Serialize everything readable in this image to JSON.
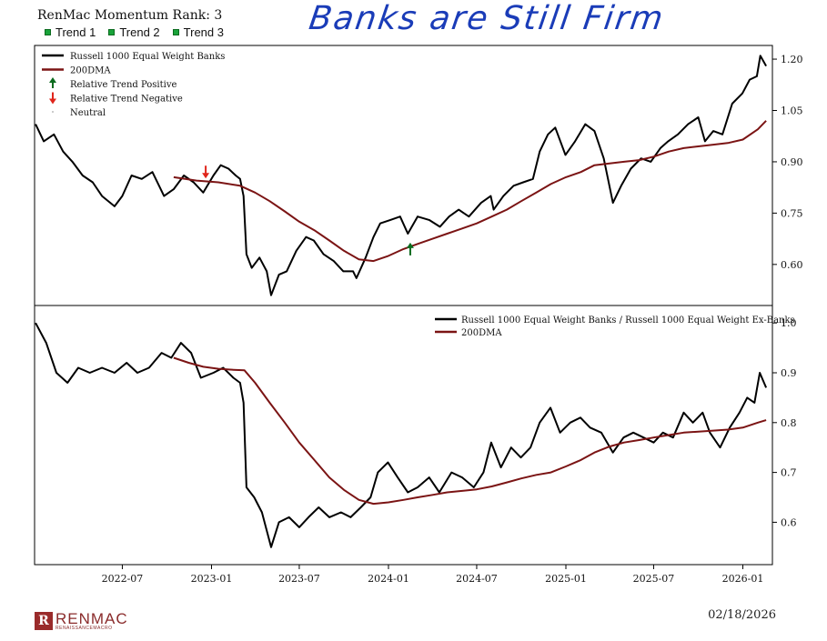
{
  "header": {
    "title": "RenMac Momentum Rank: 3",
    "trends": [
      "Trend 1",
      "Trend 2",
      "Trend 3"
    ],
    "annotation": "Banks are Still Firm"
  },
  "footer": {
    "date": "02/18/2026",
    "logo_name": "RENMAC",
    "logo_sub": "RENAISSANCEMACRO",
    "logo_mark": "R"
  },
  "colors": {
    "price": "#000000",
    "dma": "#7b1414",
    "trend_up": "#0b6b1e",
    "trend_down": "#e0251b",
    "trend_box": "#19a33a"
  },
  "chart_data": [
    {
      "type": "line",
      "id": "top",
      "xlim": [
        "2022-01-01",
        "2026-03-03"
      ],
      "ylim": [
        0.48,
        1.24
      ],
      "yticks": [
        0.6,
        0.75,
        0.9,
        1.05,
        1.2
      ],
      "ytick_labels": [
        "0.60",
        "0.75",
        "0.90",
        "1.05",
        "1.20"
      ],
      "legend": {
        "position": "top-left",
        "entries": [
          "Russell 1000 Equal Weight Banks",
          "200DMA",
          "Relative Trend Positive",
          "Relative Trend Negative",
          "Neutral"
        ]
      },
      "series": [
        {
          "name": "Russell 1000 Equal Weight Banks",
          "x": [
            "2022-01-03",
            "2022-01-20",
            "2022-02-10",
            "2022-03-01",
            "2022-03-20",
            "2022-04-10",
            "2022-05-01",
            "2022-05-20",
            "2022-06-15",
            "2022-07-01",
            "2022-07-20",
            "2022-08-10",
            "2022-09-01",
            "2022-09-25",
            "2022-10-15",
            "2022-11-05",
            "2022-11-25",
            "2022-12-15",
            "2023-01-05",
            "2023-01-20",
            "2023-02-05",
            "2023-02-20",
            "2023-03-01",
            "2023-03-08",
            "2023-03-14",
            "2023-03-25",
            "2023-04-10",
            "2023-04-25",
            "2023-05-04",
            "2023-05-20",
            "2023-06-05",
            "2023-06-25",
            "2023-07-15",
            "2023-07-31",
            "2023-08-20",
            "2023-09-10",
            "2023-09-30",
            "2023-10-20",
            "2023-10-27",
            "2023-11-15",
            "2023-12-01",
            "2023-12-15",
            "2024-01-05",
            "2024-01-25",
            "2024-02-10",
            "2024-03-01",
            "2024-03-25",
            "2024-04-16",
            "2024-05-05",
            "2024-05-25",
            "2024-06-15",
            "2024-07-10",
            "2024-07-30",
            "2024-08-05",
            "2024-08-25",
            "2024-09-15",
            "2024-10-05",
            "2024-10-25",
            "2024-11-08",
            "2024-11-25",
            "2024-12-10",
            "2024-12-31",
            "2025-01-20",
            "2025-02-10",
            "2025-03-01",
            "2025-03-20",
            "2025-04-08",
            "2025-04-25",
            "2025-05-15",
            "2025-06-05",
            "2025-06-25",
            "2025-07-15",
            "2025-07-31",
            "2025-08-20",
            "2025-09-10",
            "2025-10-01",
            "2025-10-15",
            "2025-11-01",
            "2025-11-20",
            "2025-12-10",
            "2025-12-31",
            "2026-01-15",
            "2026-01-30",
            "2026-02-06",
            "2026-02-18"
          ],
          "y": [
            1.01,
            0.96,
            0.98,
            0.93,
            0.9,
            0.86,
            0.84,
            0.8,
            0.77,
            0.8,
            0.86,
            0.85,
            0.87,
            0.8,
            0.82,
            0.86,
            0.84,
            0.81,
            0.86,
            0.89,
            0.88,
            0.86,
            0.85,
            0.8,
            0.63,
            0.59,
            0.62,
            0.58,
            0.51,
            0.57,
            0.58,
            0.64,
            0.68,
            0.67,
            0.63,
            0.61,
            0.58,
            0.58,
            0.56,
            0.62,
            0.68,
            0.72,
            0.73,
            0.74,
            0.69,
            0.74,
            0.73,
            0.71,
            0.74,
            0.76,
            0.74,
            0.78,
            0.8,
            0.76,
            0.8,
            0.83,
            0.84,
            0.85,
            0.93,
            0.98,
            1.0,
            0.92,
            0.96,
            1.01,
            0.99,
            0.91,
            0.78,
            0.83,
            0.88,
            0.91,
            0.9,
            0.94,
            0.96,
            0.98,
            1.01,
            1.03,
            0.96,
            0.99,
            0.98,
            1.07,
            1.1,
            1.14,
            1.15,
            1.21,
            1.18
          ]
        },
        {
          "name": "200DMA",
          "x": [
            "2022-10-15",
            "2022-12-01",
            "2023-01-15",
            "2023-03-01",
            "2023-04-01",
            "2023-05-01",
            "2023-06-01",
            "2023-07-01",
            "2023-08-01",
            "2023-09-01",
            "2023-10-01",
            "2023-11-01",
            "2023-12-01",
            "2024-01-01",
            "2024-02-01",
            "2024-03-01",
            "2024-04-01",
            "2024-05-01",
            "2024-06-01",
            "2024-07-01",
            "2024-08-01",
            "2024-09-01",
            "2024-10-01",
            "2024-11-01",
            "2024-12-01",
            "2025-01-01",
            "2025-02-01",
            "2025-03-01",
            "2025-04-01",
            "2025-05-01",
            "2025-06-01",
            "2025-07-01",
            "2025-08-01",
            "2025-09-01",
            "2025-10-01",
            "2025-11-01",
            "2025-12-01",
            "2026-01-01",
            "2026-02-01",
            "2026-02-18"
          ],
          "y": [
            0.855,
            0.845,
            0.84,
            0.83,
            0.81,
            0.785,
            0.755,
            0.725,
            0.7,
            0.67,
            0.64,
            0.615,
            0.61,
            0.625,
            0.645,
            0.66,
            0.675,
            0.69,
            0.705,
            0.72,
            0.74,
            0.76,
            0.785,
            0.81,
            0.835,
            0.855,
            0.87,
            0.89,
            0.895,
            0.9,
            0.905,
            0.915,
            0.93,
            0.94,
            0.945,
            0.95,
            0.955,
            0.965,
            0.995,
            1.02
          ]
        }
      ],
      "markers": [
        {
          "type": "Relative Trend Negative",
          "x": "2022-12-20",
          "y": 0.87
        },
        {
          "type": "Relative Trend Positive",
          "x": "2024-02-15",
          "y": 0.645
        }
      ]
    },
    {
      "type": "line",
      "id": "bottom",
      "xlim": [
        "2022-01-01",
        "2026-03-03"
      ],
      "ylim": [
        0.515,
        1.035
      ],
      "yticks": [
        0.6,
        0.7,
        0.8,
        0.9,
        1.0
      ],
      "ytick_labels": [
        "0.6",
        "0.7",
        "0.8",
        "0.9",
        "1.0"
      ],
      "xtick_labels": [
        "2022-07",
        "2023-01",
        "2023-07",
        "2024-01",
        "2024-07",
        "2025-01",
        "2025-07",
        "2026-01"
      ],
      "xticks": [
        "2022-07-01",
        "2023-01-01",
        "2023-07-01",
        "2024-01-01",
        "2024-07-01",
        "2025-01-01",
        "2025-07-01",
        "2026-01-01"
      ],
      "legend": {
        "position": "top-right",
        "entries": [
          "Russell 1000 Equal Weight Banks / Russell 1000 Equal Weight Ex-Banks",
          "200DMA"
        ]
      },
      "series": [
        {
          "name": "Russell 1000 Equal Weight Banks / Russell 1000 Equal Weight Ex-Banks",
          "x": [
            "2022-01-03",
            "2022-01-25",
            "2022-02-15",
            "2022-03-10",
            "2022-04-01",
            "2022-04-25",
            "2022-05-20",
            "2022-06-15",
            "2022-07-10",
            "2022-08-01",
            "2022-08-25",
            "2022-09-20",
            "2022-10-10",
            "2022-10-30",
            "2022-11-20",
            "2022-12-10",
            "2023-01-05",
            "2023-01-25",
            "2023-02-15",
            "2023-03-01",
            "2023-03-08",
            "2023-03-14",
            "2023-03-30",
            "2023-04-15",
            "2023-05-04",
            "2023-05-20",
            "2023-06-10",
            "2023-07-01",
            "2023-07-20",
            "2023-08-10",
            "2023-09-01",
            "2023-09-25",
            "2023-10-15",
            "2023-11-05",
            "2023-11-25",
            "2023-12-10",
            "2023-12-31",
            "2024-01-20",
            "2024-02-10",
            "2024-03-01",
            "2024-03-25",
            "2024-04-15",
            "2024-05-10",
            "2024-06-01",
            "2024-06-25",
            "2024-07-15",
            "2024-07-31",
            "2024-08-20",
            "2024-09-10",
            "2024-09-30",
            "2024-10-20",
            "2024-11-08",
            "2024-11-30",
            "2024-12-20",
            "2025-01-10",
            "2025-01-31",
            "2025-02-20",
            "2025-03-15",
            "2025-04-08",
            "2025-04-30",
            "2025-05-20",
            "2025-06-10",
            "2025-07-01",
            "2025-07-20",
            "2025-08-10",
            "2025-09-01",
            "2025-09-20",
            "2025-10-10",
            "2025-10-25",
            "2025-11-15",
            "2025-12-05",
            "2025-12-25",
            "2026-01-10",
            "2026-01-25",
            "2026-02-05",
            "2026-02-18"
          ],
          "y": [
            1.0,
            0.96,
            0.9,
            0.88,
            0.91,
            0.9,
            0.91,
            0.9,
            0.92,
            0.9,
            0.91,
            0.94,
            0.93,
            0.96,
            0.94,
            0.89,
            0.9,
            0.91,
            0.89,
            0.88,
            0.84,
            0.67,
            0.65,
            0.62,
            0.55,
            0.6,
            0.61,
            0.59,
            0.61,
            0.63,
            0.61,
            0.62,
            0.61,
            0.63,
            0.65,
            0.7,
            0.72,
            0.69,
            0.66,
            0.67,
            0.69,
            0.66,
            0.7,
            0.69,
            0.67,
            0.7,
            0.76,
            0.71,
            0.75,
            0.73,
            0.75,
            0.8,
            0.83,
            0.78,
            0.8,
            0.81,
            0.79,
            0.78,
            0.74,
            0.77,
            0.78,
            0.77,
            0.76,
            0.78,
            0.77,
            0.82,
            0.8,
            0.82,
            0.78,
            0.75,
            0.79,
            0.82,
            0.85,
            0.84,
            0.9,
            0.87
          ]
        },
        {
          "name": "200DMA",
          "x": [
            "2022-10-15",
            "2022-11-15",
            "2022-12-15",
            "2023-01-15",
            "2023-02-15",
            "2023-03-10",
            "2023-04-01",
            "2023-05-01",
            "2023-06-01",
            "2023-07-01",
            "2023-08-01",
            "2023-09-01",
            "2023-10-01",
            "2023-11-01",
            "2023-12-01",
            "2024-01-01",
            "2024-02-01",
            "2024-03-01",
            "2024-04-01",
            "2024-05-01",
            "2024-06-01",
            "2024-07-01",
            "2024-08-01",
            "2024-09-01",
            "2024-10-01",
            "2024-11-01",
            "2024-12-01",
            "2025-01-01",
            "2025-02-01",
            "2025-03-01",
            "2025-04-01",
            "2025-05-01",
            "2025-06-01",
            "2025-07-01",
            "2025-08-01",
            "2025-09-01",
            "2025-10-01",
            "2025-11-01",
            "2025-12-01",
            "2026-01-01",
            "2026-02-01",
            "2026-02-18"
          ],
          "y": [
            0.93,
            0.92,
            0.912,
            0.908,
            0.906,
            0.905,
            0.88,
            0.84,
            0.8,
            0.76,
            0.725,
            0.69,
            0.665,
            0.645,
            0.637,
            0.64,
            0.645,
            0.65,
            0.655,
            0.66,
            0.663,
            0.666,
            0.672,
            0.68,
            0.688,
            0.695,
            0.7,
            0.712,
            0.725,
            0.74,
            0.752,
            0.76,
            0.765,
            0.77,
            0.775,
            0.78,
            0.782,
            0.784,
            0.786,
            0.79,
            0.8,
            0.805
          ]
        }
      ]
    }
  ]
}
